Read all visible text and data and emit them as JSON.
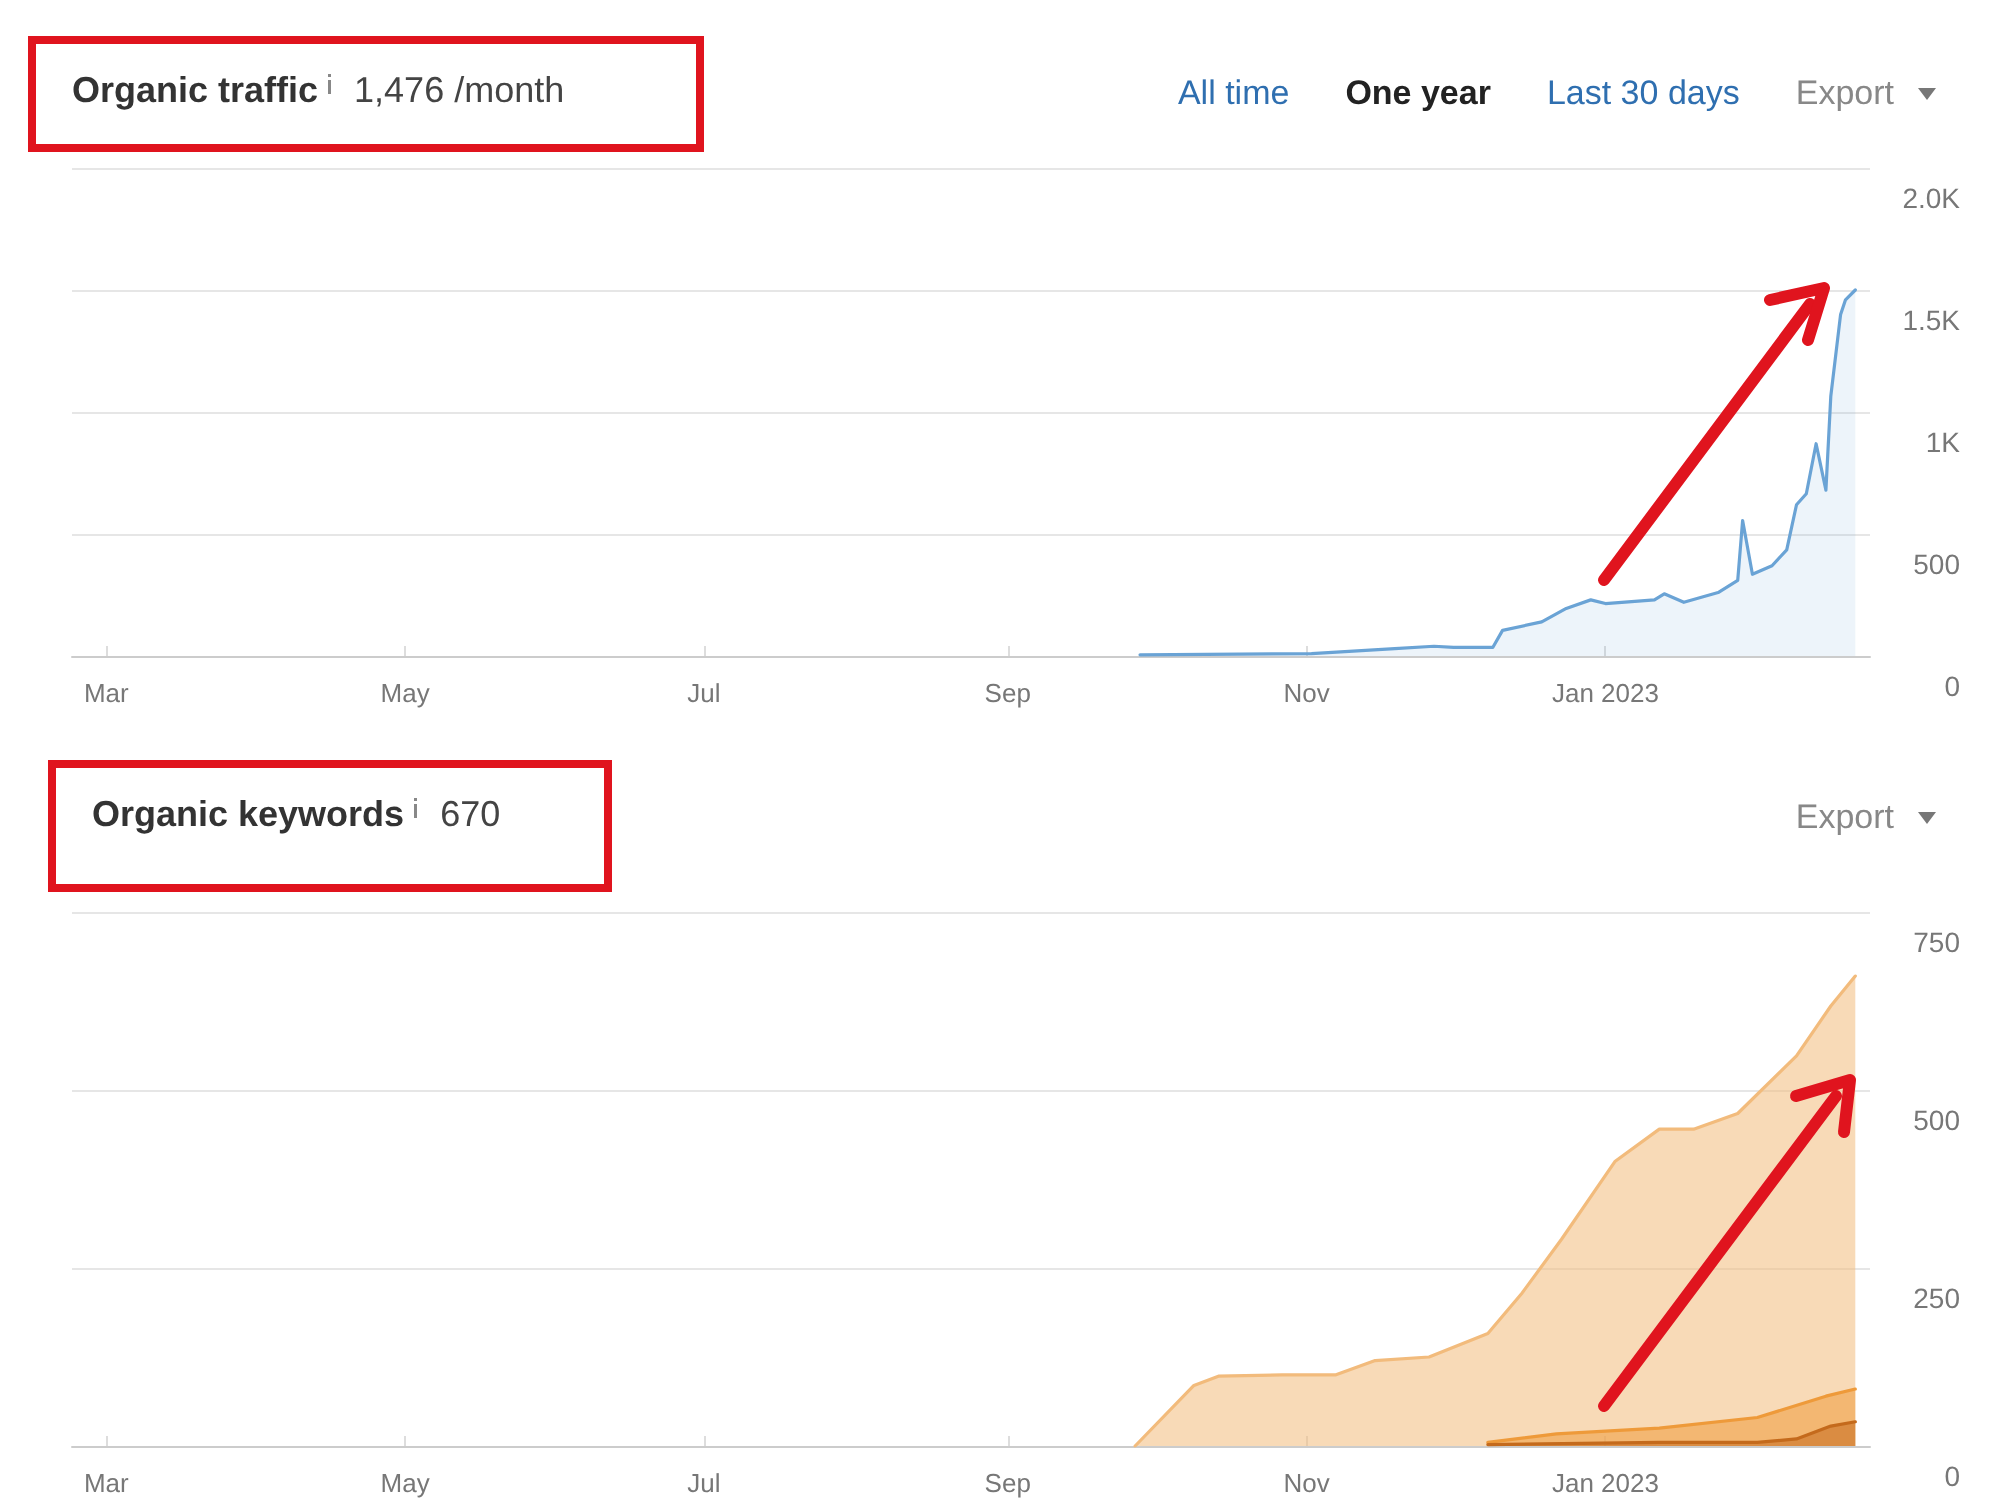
{
  "chart_data": [
    {
      "type": "area",
      "title": "Organic traffic",
      "subtitle": "1,476 /month",
      "annotations": [
        "All time",
        "One year",
        "Last 30 days",
        "Export"
      ],
      "x": [
        "2022-09-28",
        "2022-11-02",
        "2022-11-19",
        "2022-11-27",
        "2022-12-01",
        "2022-12-09",
        "2022-12-11",
        "2022-12-19",
        "2022-12-24",
        "2022-12-29",
        "2023-01-01",
        "2023-01-11",
        "2023-01-13",
        "2023-01-17",
        "2023-01-24",
        "2023-01-28",
        "2023-01-29",
        "2023-01-31",
        "2023-02-04",
        "2023-02-07",
        "2023-02-09",
        "2023-02-11",
        "2023-02-13",
        "2023-02-15",
        "2023-02-16",
        "2023-02-18",
        "2023-02-19",
        "2023-02-21"
      ],
      "values": [
        5,
        10,
        30,
        40,
        35,
        35,
        105,
        140,
        195,
        230,
        215,
        230,
        255,
        220,
        260,
        310,
        555,
        335,
        370,
        435,
        620,
        665,
        870,
        680,
        1065,
        1400,
        1460,
        1500
      ],
      "color": "#6aa3d5",
      "xlim": [
        "2022-02-22",
        "2023-02-24"
      ],
      "xticks": [
        {
          "value": "2022-03-01",
          "label": "Mar"
        },
        {
          "value": "2022-05-01",
          "label": "May"
        },
        {
          "value": "2022-07-01",
          "label": "Jul"
        },
        {
          "value": "2022-09-01",
          "label": "Sep"
        },
        {
          "value": "2022-11-01",
          "label": "Nov"
        },
        {
          "value": "2023-01-01",
          "label": "Jan 2023"
        }
      ],
      "ylim": [
        0,
        2000
      ],
      "yticks": [
        0,
        500,
        {
          "value": 1000,
          "label": "1K"
        },
        {
          "value": 1500,
          "label": "1.5K"
        },
        {
          "value": 2000,
          "label": "2.0K"
        }
      ],
      "grid": "y"
    },
    {
      "type": "area",
      "title": "Organic keywords",
      "subtitle": "670",
      "annotations": [
        "Export"
      ],
      "series": [
        {
          "color": "#f2bb7c",
          "x": [
            "2022-09-27",
            "2022-10-09",
            "2022-10-14",
            "2022-10-27",
            "2022-11-07",
            "2022-11-15",
            "2022-11-26",
            "2022-12-08",
            "2022-12-15",
            "2022-12-23",
            "2023-01-03",
            "2023-01-12",
            "2023-01-19",
            "2023-01-28",
            "2023-02-09",
            "2023-02-16",
            "2023-02-21"
          ],
          "values": [
            0,
            85,
            98,
            100,
            100,
            120,
            125,
            158,
            215,
            290,
            400,
            445,
            445,
            467,
            548,
            618,
            660
          ]
        },
        {
          "color": "#ee9a3a",
          "x": [
            "2022-12-08",
            "2022-12-22",
            "2023-01-12",
            "2023-02-01",
            "2023-02-15",
            "2023-02-21"
          ],
          "values": [
            5,
            17,
            25,
            40,
            70,
            80
          ]
        },
        {
          "color": "#c46a1c",
          "x": [
            "2022-12-08",
            "2023-01-12",
            "2023-02-01",
            "2023-02-09",
            "2023-02-16",
            "2023-02-21"
          ],
          "values": [
            2,
            5,
            5,
            10,
            28,
            34
          ]
        }
      ],
      "xlim": [
        "2022-02-22",
        "2023-02-24"
      ],
      "xticks": [
        {
          "value": "2022-03-01",
          "label": "Mar"
        },
        {
          "value": "2022-05-01",
          "label": "May"
        },
        {
          "value": "2022-07-01",
          "label": "Jul"
        },
        {
          "value": "2022-09-01",
          "label": "Sep"
        },
        {
          "value": "2022-11-01",
          "label": "Nov"
        },
        {
          "value": "2023-01-01",
          "label": "Jan 2023"
        }
      ],
      "ylim": [
        0,
        750
      ],
      "yticks": [
        0,
        250,
        500,
        750
      ],
      "grid": "y"
    }
  ]
}
